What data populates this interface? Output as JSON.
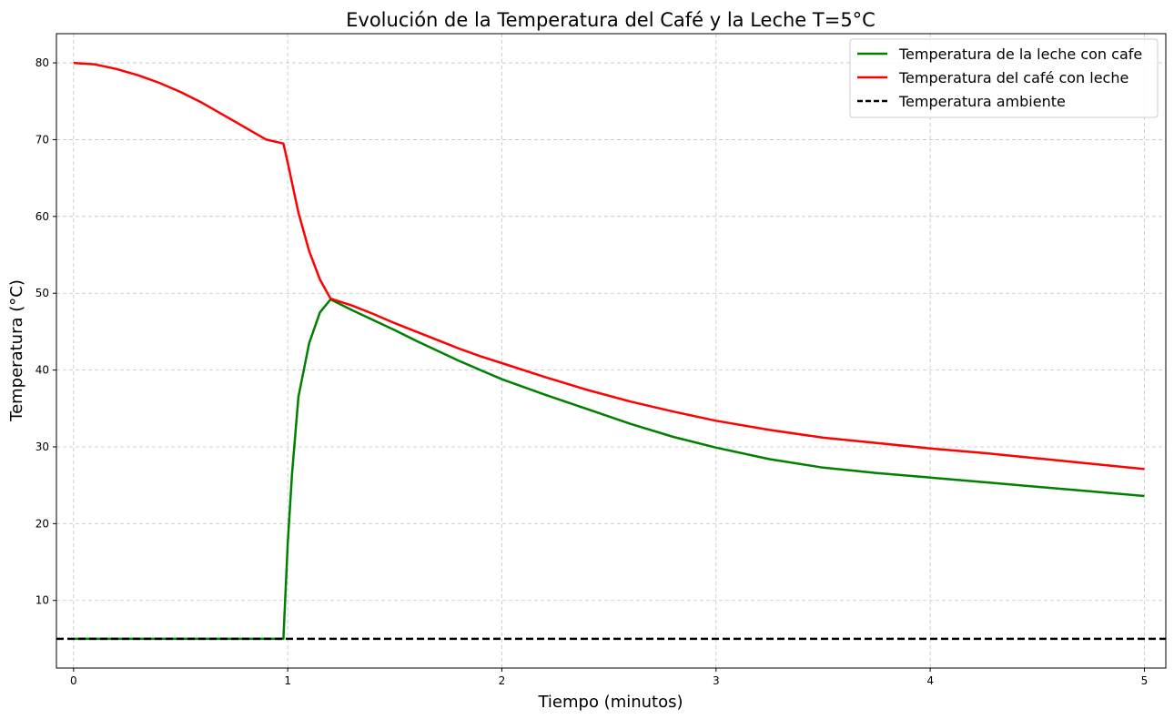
{
  "chart_data": {
    "type": "line",
    "title": "Evolución de la Temperatura del Café y la Leche T=5°C",
    "xlabel": "Tiempo (minutos)",
    "ylabel": "Temperatura (°C)",
    "xlim": [
      -0.08,
      5.1
    ],
    "ylim": [
      1.2,
      83.8
    ],
    "xticks": [
      0,
      1,
      2,
      3,
      4,
      5
    ],
    "xtick_labels": [
      "0",
      "1",
      "2",
      "3",
      "4",
      "5"
    ],
    "yticks": [
      10,
      20,
      30,
      40,
      50,
      60,
      70,
      80
    ],
    "ytick_labels": [
      "10",
      "20",
      "30",
      "40",
      "50",
      "60",
      "70",
      "80"
    ],
    "grid": true,
    "legend_position": "top-right",
    "series": [
      {
        "name": "Temperatura de la leche con cafe",
        "color": "#008000",
        "style": "solid",
        "x": [
          0,
          0.5,
          0.98,
          1.0,
          1.02,
          1.05,
          1.1,
          1.15,
          1.2,
          1.3,
          1.4,
          1.5,
          1.6,
          1.7,
          1.8,
          1.9,
          2.0,
          2.2,
          2.4,
          2.6,
          2.8,
          3.0,
          3.25,
          3.5,
          3.75,
          4.0,
          4.25,
          4.5,
          4.75,
          5.0
        ],
        "y": [
          5,
          5,
          5,
          17.5,
          26.5,
          36.5,
          43.5,
          47.5,
          49.2,
          47.8,
          46.5,
          45.2,
          43.8,
          42.5,
          41.2,
          40.0,
          38.8,
          36.8,
          34.9,
          33.0,
          31.3,
          29.9,
          28.4,
          27.3,
          26.6,
          26.0,
          25.4,
          24.8,
          24.2,
          23.6
        ]
      },
      {
        "name": "Temperatura del café con leche",
        "color": "#ff0000",
        "style": "solid",
        "x": [
          0,
          0.1,
          0.2,
          0.3,
          0.4,
          0.5,
          0.6,
          0.7,
          0.8,
          0.9,
          0.98,
          1.0,
          1.05,
          1.1,
          1.15,
          1.2,
          1.3,
          1.4,
          1.5,
          1.6,
          1.7,
          1.8,
          1.9,
          2.0,
          2.2,
          2.4,
          2.6,
          2.8,
          3.0,
          3.25,
          3.5,
          3.75,
          4.0,
          4.25,
          4.5,
          4.75,
          5.0
        ],
        "y": [
          80.0,
          79.8,
          79.2,
          78.4,
          77.4,
          76.2,
          74.8,
          73.2,
          71.6,
          70.0,
          69.5,
          67.0,
          60.5,
          55.5,
          51.8,
          49.3,
          48.4,
          47.3,
          46.1,
          45.0,
          43.9,
          42.8,
          41.8,
          40.9,
          39.1,
          37.4,
          35.9,
          34.6,
          33.4,
          32.2,
          31.2,
          30.5,
          29.8,
          29.2,
          28.5,
          27.8,
          27.1
        ]
      },
      {
        "name": "Temperatura ambiente",
        "color": "#000000",
        "style": "dashed",
        "x": [
          -0.08,
          5.1
        ],
        "y": [
          5,
          5
        ]
      }
    ]
  }
}
